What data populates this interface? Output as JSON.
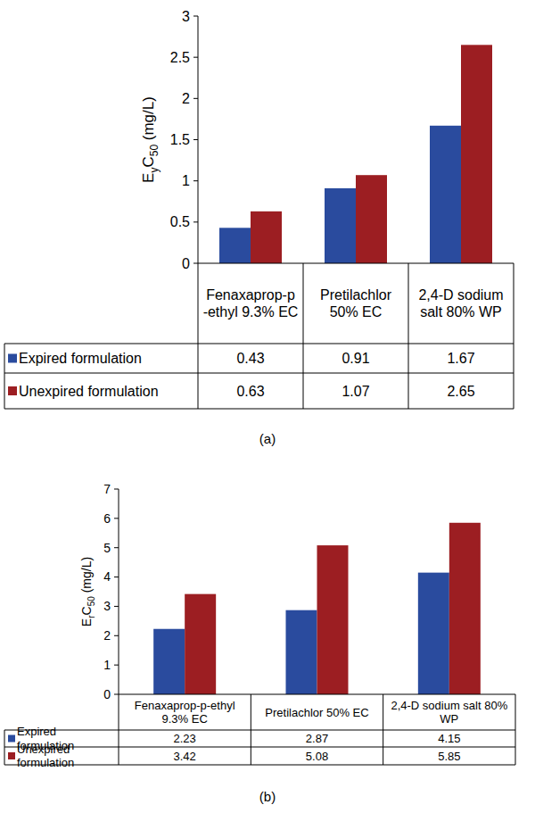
{
  "chart_data": [
    {
      "type": "bar",
      "title": "(a)",
      "y_label": "EyC50 (mg/L)",
      "categories": [
        "Fenaxaprop-p-ethyl 9.3% EC",
        "Pretilachlor 50% EC",
        "2,4-D sodium salt 80% WP"
      ],
      "series": [
        {
          "name": "Expired formulation",
          "color": "#2a4b9e",
          "values": [
            0.43,
            0.91,
            1.67
          ]
        },
        {
          "name": "Unexpired formulation",
          "color": "#9c1e22",
          "values": [
            0.63,
            1.07,
            2.65
          ]
        }
      ],
      "ylim": [
        0,
        3
      ],
      "yticks": [
        0,
        0.5,
        1,
        1.5,
        2,
        2.5,
        3
      ],
      "grid": false
    },
    {
      "type": "bar",
      "title": "(b)",
      "y_label": "ErC50 (mg/L)",
      "categories": [
        "Fenaxaprop-p-ethyl 9.3% EC",
        "Pretilachlor 50% EC",
        "2,4-D sodium salt 80% WP"
      ],
      "series": [
        {
          "name": "Expired formulation",
          "color": "#2a4b9e",
          "values": [
            2.23,
            2.87,
            4.15
          ]
        },
        {
          "name": "Unexpired formulation",
          "color": "#9c1e22",
          "values": [
            3.42,
            5.08,
            5.85
          ]
        }
      ],
      "ylim": [
        0,
        7
      ],
      "yticks": [
        0,
        1,
        2,
        3,
        4,
        5,
        6,
        7
      ],
      "grid": false
    }
  ]
}
